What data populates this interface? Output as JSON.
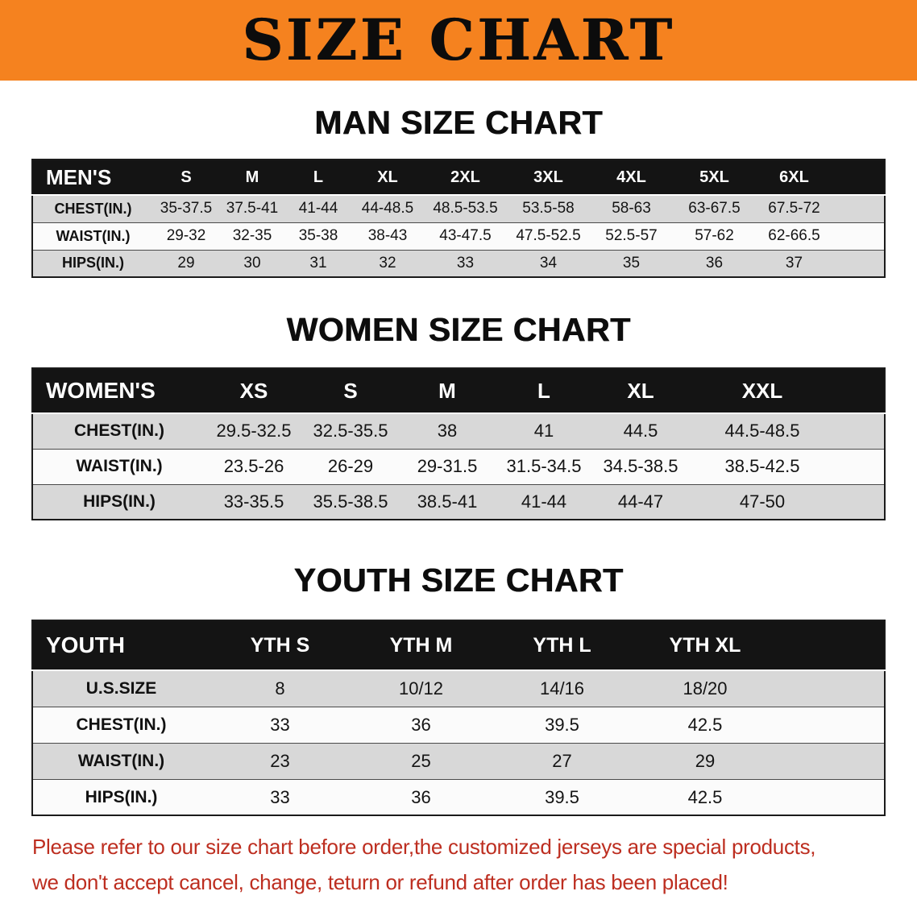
{
  "banner": {
    "title": "SIZE CHART"
  },
  "colors": {
    "banner_bg": "#f5821f",
    "header_bg": "#141414",
    "row_gray": "#d8d8d8",
    "disclaimer_red": "#bd2e20"
  },
  "sections": [
    {
      "id": "men",
      "heading": "MAN SIZE CHART",
      "table": {
        "header": [
          "MEN'S",
          "S",
          "M",
          "L",
          "XL",
          "2XL",
          "3XL",
          "4XL",
          "5XL",
          "6XL"
        ],
        "rows": [
          [
            "CHEST(IN.)",
            "35-37.5",
            "37.5-41",
            "41-44",
            "44-48.5",
            "48.5-53.5",
            "53.5-58",
            "58-63",
            "63-67.5",
            "67.5-72"
          ],
          [
            "WAIST(IN.)",
            "29-32",
            "32-35",
            "35-38",
            "38-43",
            "43-47.5",
            "47.5-52.5",
            "52.5-57",
            "57-62",
            "62-66.5"
          ],
          [
            "HIPS(IN.)",
            "29",
            "30",
            "31",
            "32",
            "33",
            "34",
            "35",
            "36",
            "37"
          ]
        ]
      }
    },
    {
      "id": "women",
      "heading": "WOMEN SIZE CHART",
      "table": {
        "header": [
          "WOMEN'S",
          "XS",
          "S",
          "M",
          "L",
          "XL",
          "XXL"
        ],
        "rows": [
          [
            "CHEST(IN.)",
            "29.5-32.5",
            "32.5-35.5",
            "38",
            "41",
            "44.5",
            "44.5-48.5"
          ],
          [
            "WAIST(IN.)",
            "23.5-26",
            "26-29",
            "29-31.5",
            "31.5-34.5",
            "34.5-38.5",
            "38.5-42.5"
          ],
          [
            "HIPS(IN.)",
            "33-35.5",
            "35.5-38.5",
            "38.5-41",
            "41-44",
            "44-47",
            "47-50"
          ]
        ]
      }
    },
    {
      "id": "youth",
      "heading": "YOUTH SIZE CHART",
      "table": {
        "header": [
          "YOUTH",
          "YTH S",
          "YTH M",
          "YTH L",
          "YTH XL"
        ],
        "rows": [
          [
            "U.S.SIZE",
            "8",
            "10/12",
            "14/16",
            "18/20"
          ],
          [
            "CHEST(IN.)",
            "33",
            "36",
            "39.5",
            "42.5"
          ],
          [
            "WAIST(IN.)",
            "23",
            "25",
            "27",
            "29"
          ],
          [
            "HIPS(IN.)",
            "33",
            "36",
            "39.5",
            "42.5"
          ]
        ]
      }
    }
  ],
  "disclaimer": {
    "line1": "Please refer to our size chart before order,the customized jerseys are special products,",
    "line2": "we don't accept cancel, change, teturn or refund after order has been placed!"
  }
}
